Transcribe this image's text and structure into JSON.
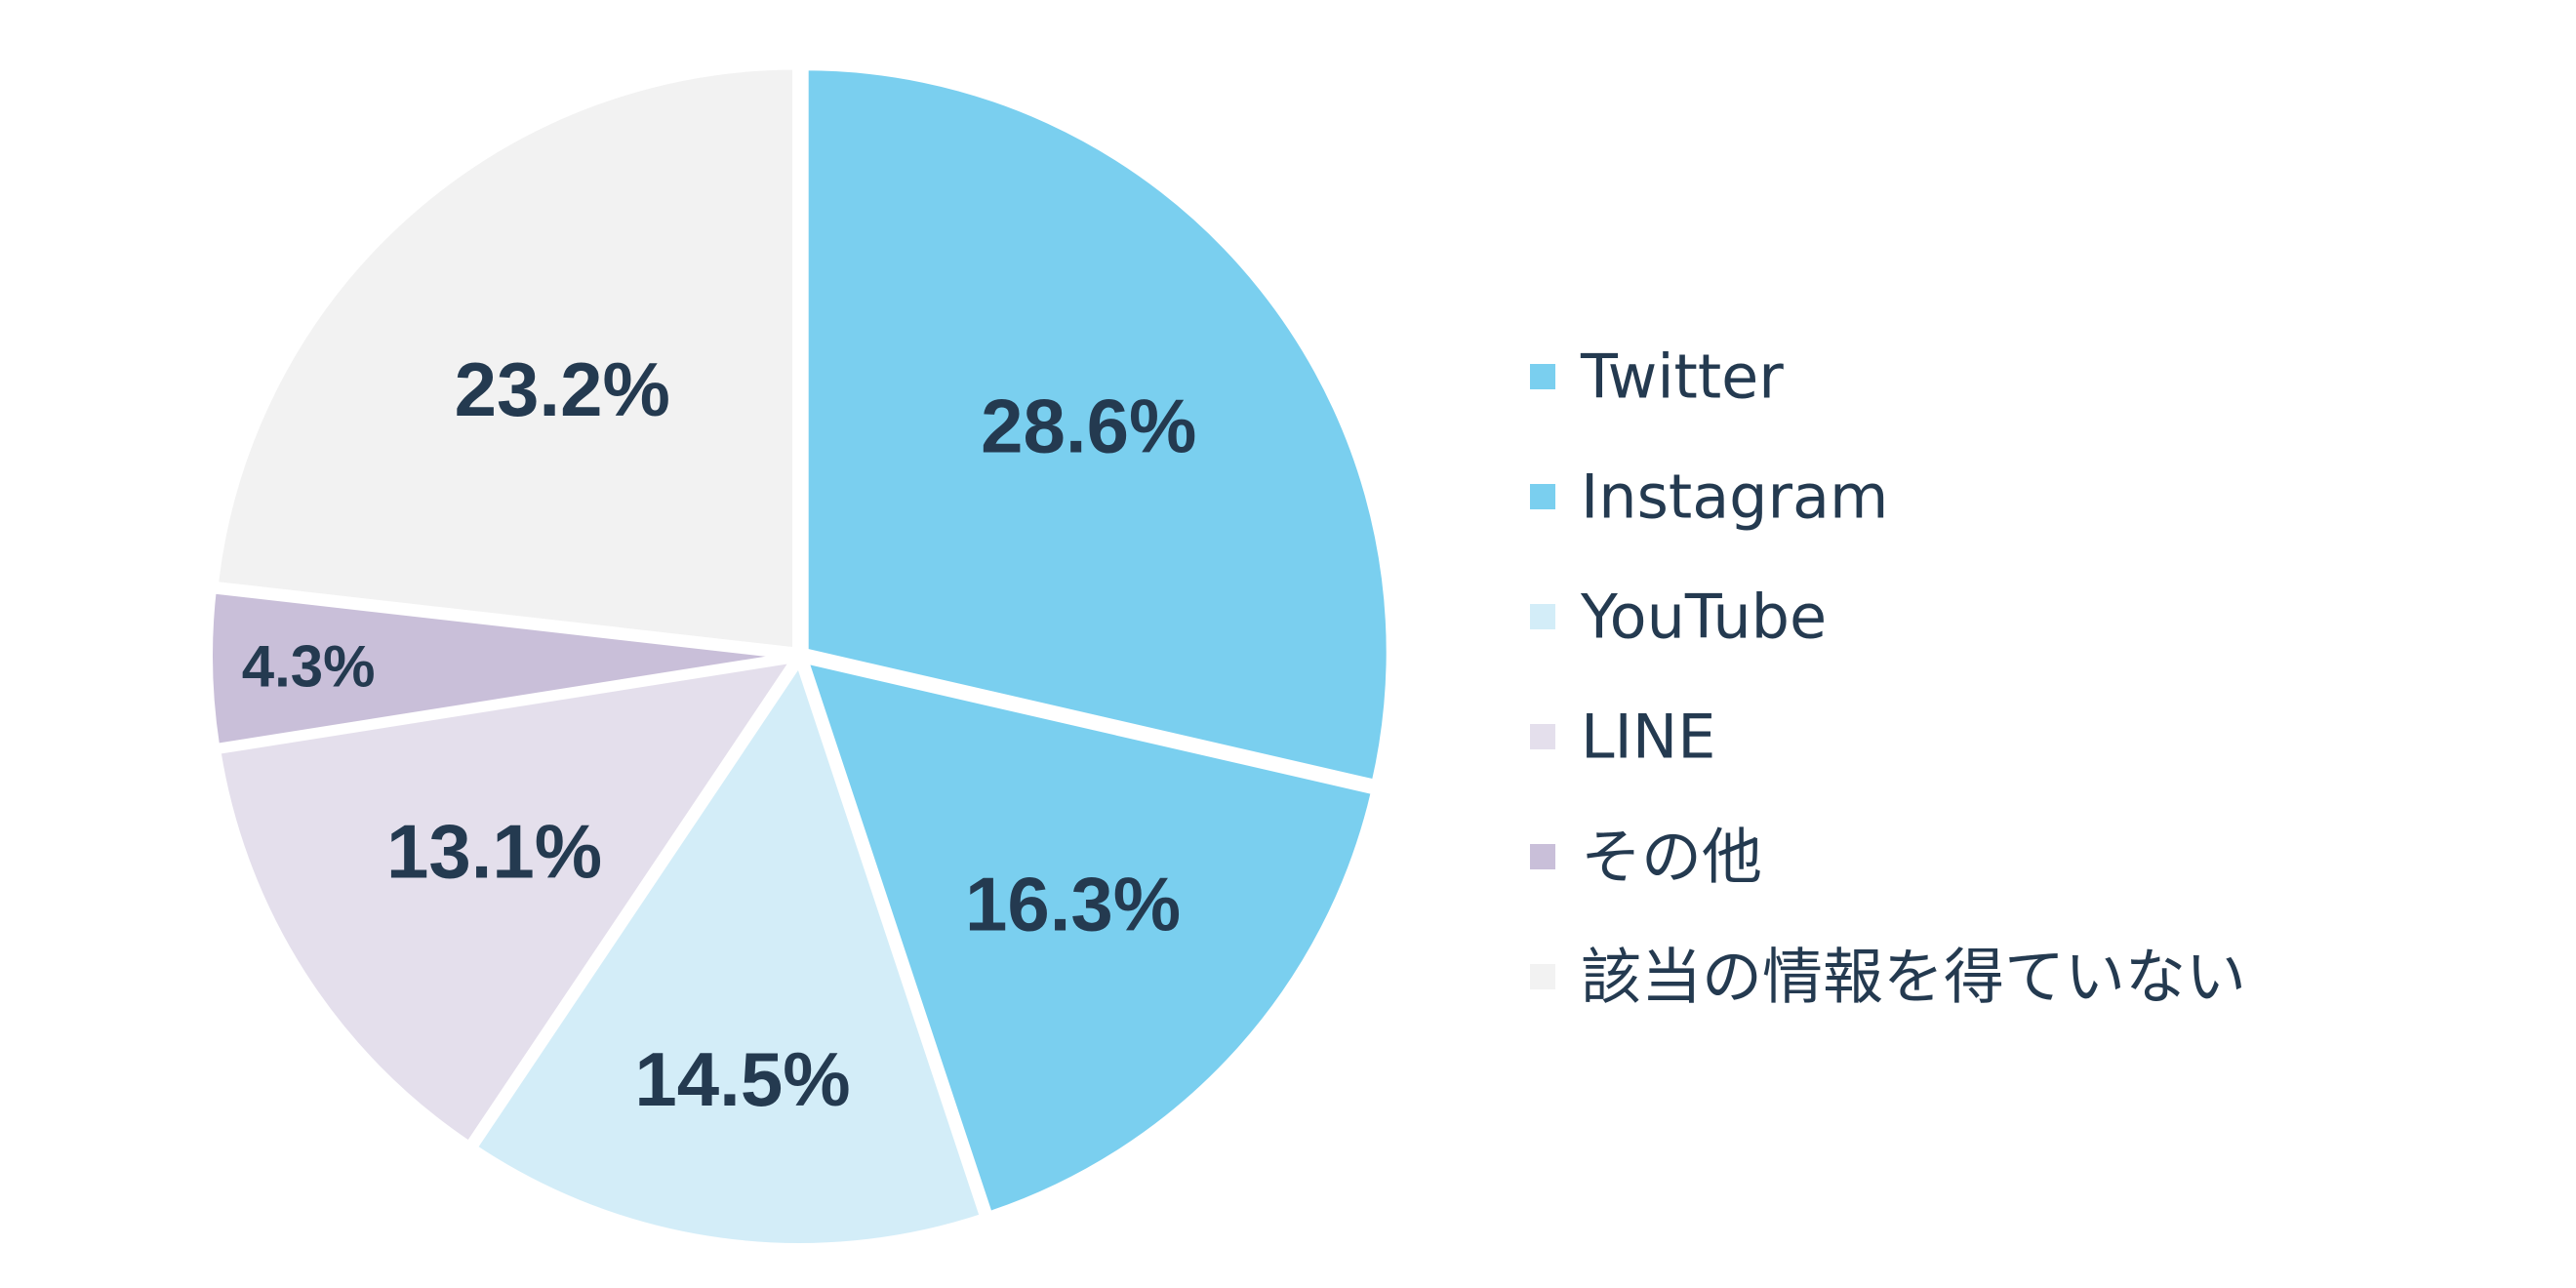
{
  "chart_data": {
    "type": "pie",
    "start_angle_deg": 0,
    "direction": "clockwise",
    "legend_position": "right",
    "slices": [
      {
        "name": "Twitter",
        "value": 28.6,
        "label": "28.6%",
        "color": "#7acfef"
      },
      {
        "name": "Instagram",
        "value": 16.3,
        "label": "16.3%",
        "color": "#7acfef"
      },
      {
        "name": "YouTube",
        "value": 14.5,
        "label": "14.5%",
        "color": "#d3edf8"
      },
      {
        "name": "LINE",
        "value": 13.1,
        "label": "13.1%",
        "color": "#e4dfec"
      },
      {
        "name": "その他",
        "value": 4.3,
        "label": "4.3%",
        "color": "#c9bfd9"
      },
      {
        "name": "該当の情報を得ていない",
        "value": 23.2,
        "label": "23.2%",
        "color": "#f2f2f2"
      }
    ]
  },
  "colors": {
    "text": "#243a50",
    "separator": "#ffffff"
  }
}
